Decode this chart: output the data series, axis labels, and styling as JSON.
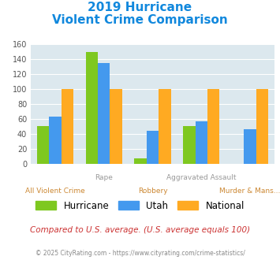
{
  "title_line1": "2019 Hurricane",
  "title_line2": "Violent Crime Comparison",
  "series": {
    "Hurricane": [
      50,
      150,
      7,
      50,
      0
    ],
    "Utah": [
      63,
      135,
      44,
      57,
      46
    ],
    "National": [
      100,
      100,
      100,
      100,
      100
    ]
  },
  "colors": {
    "Hurricane": "#7ec820",
    "Utah": "#4499ee",
    "National": "#ffaa22"
  },
  "top_labels": [
    "",
    "Rape",
    "",
    "Aggravated Assault",
    ""
  ],
  "bottom_labels": [
    "All Violent Crime",
    "",
    "Robbery",
    "",
    "Murder & Mans..."
  ],
  "ylim": [
    0,
    160
  ],
  "yticks": [
    0,
    20,
    40,
    60,
    80,
    100,
    120,
    140,
    160
  ],
  "bg_color": "#dce8ee",
  "title_color": "#1188dd",
  "top_label_color": "#999999",
  "bottom_label_color": "#cc8833",
  "note_text": "Compared to U.S. average. (U.S. average equals 100)",
  "note_color": "#cc3333",
  "footer_text": "© 2025 CityRating.com - https://www.cityrating.com/crime-statistics/",
  "footer_color": "#888888",
  "bar_width": 0.25
}
